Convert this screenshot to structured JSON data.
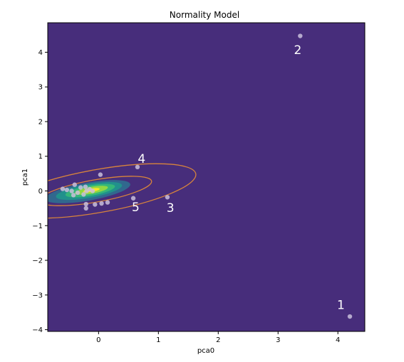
{
  "chart_data": {
    "type": "scatter",
    "title": "Normality Model",
    "xlabel": "pca0",
    "ylabel": "pca1",
    "xlim": [
      -0.85,
      4.45
    ],
    "ylim": [
      -4.05,
      4.85
    ],
    "xticks": [
      0,
      1,
      2,
      3,
      4
    ],
    "yticks": [
      -4,
      -3,
      -2,
      -1,
      0,
      1,
      2,
      3,
      4
    ],
    "background_color": "#472d7b",
    "point_color": "#c9bfdc",
    "contour_colors": [
      "#31688e",
      "#21918c",
      "#35b779",
      "#90d743",
      "#fde725"
    ],
    "ellipse_color": "#d8843c",
    "grid": false,
    "points": [
      {
        "x": 4.2,
        "y": -3.62
      },
      {
        "x": 3.37,
        "y": 4.47
      },
      {
        "x": 1.15,
        "y": -0.18
      },
      {
        "x": 0.65,
        "y": 0.69
      },
      {
        "x": 0.58,
        "y": -0.21
      },
      {
        "x": 0.03,
        "y": 0.47
      },
      {
        "x": 0.15,
        "y": -0.33
      },
      {
        "x": 0.05,
        "y": -0.36
      },
      {
        "x": -0.06,
        "y": -0.39
      },
      {
        "x": -0.21,
        "y": -0.38
      },
      {
        "x": -0.21,
        "y": -0.5
      },
      {
        "x": -0.6,
        "y": 0.06
      },
      {
        "x": -0.53,
        "y": 0.03
      },
      {
        "x": -0.45,
        "y": 0.0
      },
      {
        "x": -0.4,
        "y": 0.18
      },
      {
        "x": -0.3,
        "y": 0.1
      },
      {
        "x": -0.22,
        "y": 0.12
      },
      {
        "x": -0.15,
        "y": 0.05
      },
      {
        "x": -0.35,
        "y": -0.05
      },
      {
        "x": -0.25,
        "y": -0.1
      },
      {
        "x": -0.1,
        "y": 0.0
      },
      {
        "x": -0.2,
        "y": 0.0
      },
      {
        "x": -0.42,
        "y": -0.12
      }
    ],
    "annotations": [
      {
        "text": "1",
        "x": 4.05,
        "y": -3.4
      },
      {
        "text": "2",
        "x": 3.33,
        "y": 3.95
      },
      {
        "text": "3",
        "x": 1.2,
        "y": -0.6
      },
      {
        "text": "4",
        "x": 0.72,
        "y": 0.81
      },
      {
        "text": "5",
        "x": 0.62,
        "y": -0.58
      }
    ],
    "ellipses": [
      {
        "cx": -0.05,
        "cy": 0.0,
        "rx": 0.95,
        "ry": 0.32,
        "angle_deg": 10
      },
      {
        "cx": 0.0,
        "cy": 0.0,
        "rx": 1.65,
        "ry": 0.62,
        "angle_deg": 10
      }
    ],
    "density_levels": [
      {
        "cx": -0.18,
        "cy": -0.02,
        "rx": 0.72,
        "ry": 0.26
      },
      {
        "cx": -0.16,
        "cy": 0.0,
        "rx": 0.56,
        "ry": 0.2
      },
      {
        "cx": -0.14,
        "cy": 0.01,
        "rx": 0.42,
        "ry": 0.15
      },
      {
        "cx": -0.12,
        "cy": 0.02,
        "rx": 0.28,
        "ry": 0.1
      },
      {
        "cx": -0.12,
        "cy": 0.02,
        "rx": 0.14,
        "ry": 0.05
      }
    ]
  }
}
